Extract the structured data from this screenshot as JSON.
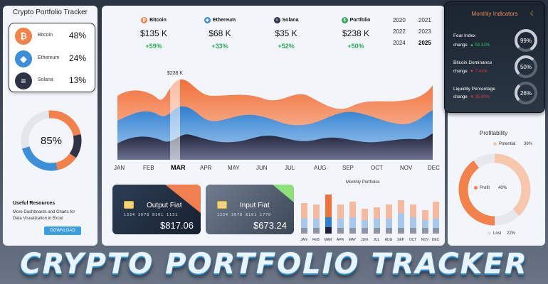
{
  "app_title": "Crypto Portfolio Tracker",
  "coins": [
    {
      "name": "Bitcoin",
      "pct": "48%",
      "icon": "bitcoin-icon",
      "glyph": "₿",
      "color": "#f2814a"
    },
    {
      "name": "Ethereum",
      "pct": "24%",
      "icon": "ethereum-icon",
      "glyph": "◆",
      "color": "#3a8fd8"
    },
    {
      "name": "Solana",
      "pct": "13%",
      "icon": "solana-icon",
      "glyph": "≡",
      "color": "#2d3247"
    }
  ],
  "donut": {
    "label": "85%",
    "value": 85,
    "colors": [
      "#f2814a",
      "#3a8fd8",
      "#2d3247",
      "#e3e6ea"
    ]
  },
  "resources": {
    "title": "Useful Resources",
    "text": "More Dashboards and Charts for Data Visualization in Excel",
    "download_label": "DOWNLOAD"
  },
  "stats": [
    {
      "name": "Bitcoin",
      "value": "$135 K",
      "change": "+59%",
      "glyph": "₿",
      "color": "#f2814a"
    },
    {
      "name": "Ethereum",
      "value": "$68 K",
      "change": "+33%",
      "glyph": "◆",
      "color": "#3a8fd8"
    },
    {
      "name": "Solana",
      "value": "$35 K",
      "change": "+52%",
      "glyph": "≡",
      "color": "#2d3247"
    },
    {
      "name": "Portfolio",
      "value": "$238 K",
      "change": "+50%",
      "glyph": "$",
      "color": "#2eab5c"
    }
  ],
  "years": [
    "2020",
    "2021",
    "2022",
    "2023",
    "2024",
    "2025"
  ],
  "selected_year": "2025",
  "months": [
    "JAN",
    "FEB",
    "MAR",
    "APR",
    "MAY",
    "JUN",
    "JUL",
    "AUG",
    "SEP",
    "OCT",
    "NOV",
    "DEC"
  ],
  "selected_month": "MAR",
  "highlight_label": "$238 K",
  "cards": [
    {
      "title": "Output Fiat",
      "digits": "1334  3078  8101  1131",
      "amount": "$817.06",
      "accent": "#f08050"
    },
    {
      "title": "Input Fiat",
      "digits": "1334  3078  8101  1770",
      "amount": "$673.24",
      "accent": "#8ee07a"
    }
  ],
  "monthly_portfolios_title": "Monthly Portfolios",
  "monthly_months": [
    "JAN",
    "FEB",
    "MAR",
    "APR",
    "MAY",
    "JUN",
    "JUL",
    "AUG",
    "SEP",
    "OCT",
    "NOV",
    "DEC"
  ],
  "indicators": {
    "title": "Monthly Indicators",
    "items": [
      {
        "label": "Fear Index",
        "change_label": "change",
        "arrow": "▲",
        "change": "52.31%",
        "direction": "up",
        "gauge": "99%",
        "gauge_value": 99
      },
      {
        "label": "Bitcoin Dominance",
        "change_label": "change",
        "arrow": "▼",
        "change": "7.41%",
        "direction": "down",
        "gauge": "50%",
        "gauge_value": 50
      },
      {
        "label": "Liquidity Percentage",
        "change_label": "change",
        "arrow": "▼",
        "change": "35.00%",
        "direction": "down",
        "gauge": "26%",
        "gauge_value": 26
      }
    ]
  },
  "profitability": {
    "title": "Profitability",
    "potential_label": "Potential",
    "potential_pct": "38%",
    "profit_label": "Profit",
    "profit_pct": "40%",
    "lost_label": "Lost",
    "lost_pct": "22%"
  },
  "banner": "CRYPTO PORTFOLIO TRACKER"
}
